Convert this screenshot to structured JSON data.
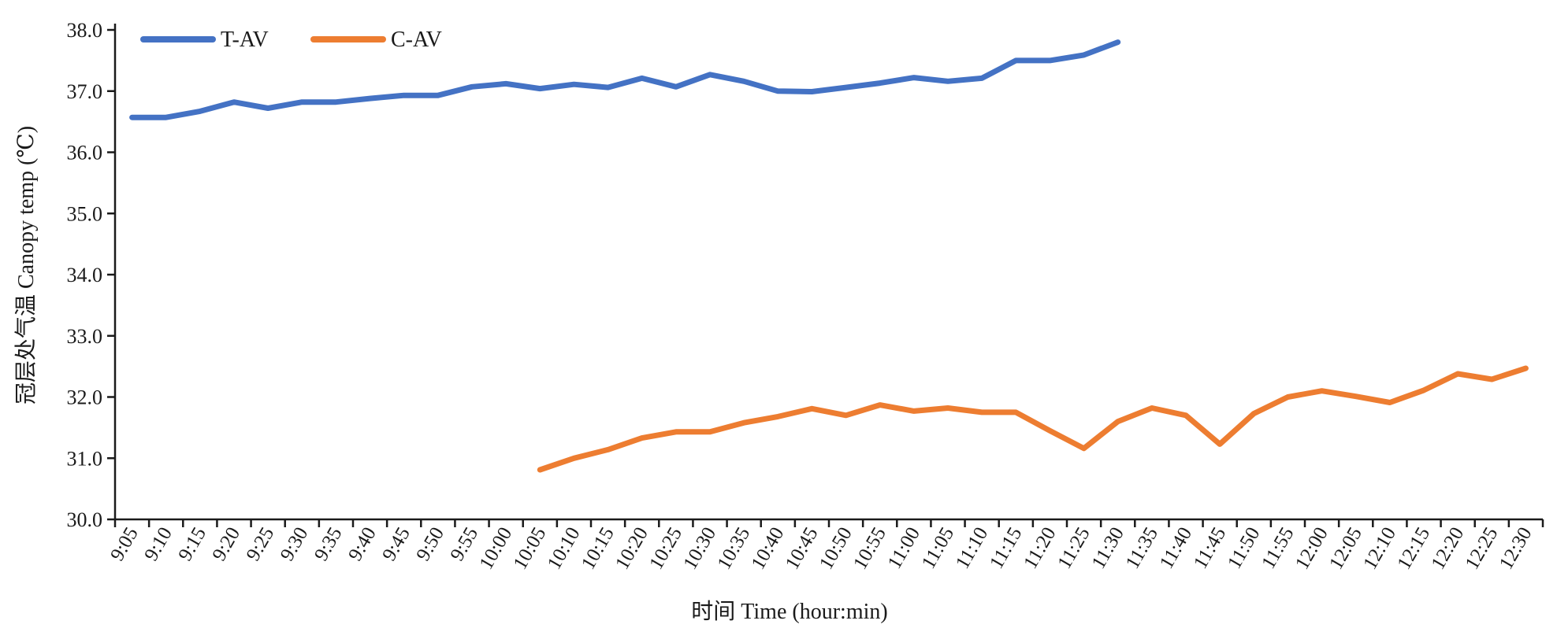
{
  "chart_data": {
    "type": "line",
    "xlabel": "时间 Time (hour:min)",
    "ylabel": "冠层处气温 Canopy temp (℃)",
    "ylim": [
      30.0,
      38.0
    ],
    "yticks": [
      "30.0",
      "31.0",
      "32.0",
      "33.0",
      "34.0",
      "35.0",
      "36.0",
      "37.0",
      "38.0"
    ],
    "grid": false,
    "legend": "top-left",
    "categories": [
      "9:05",
      "9:10",
      "9:15",
      "9:20",
      "9:25",
      "9:30",
      "9:35",
      "9:40",
      "9:45",
      "9:50",
      "9:55",
      "10:00",
      "10:05",
      "10:10",
      "10:15",
      "10:20",
      "10:25",
      "10:30",
      "10:35",
      "10:40",
      "10:45",
      "10:50",
      "10:55",
      "11:00",
      "11:05",
      "11:10",
      "11:15",
      "11:20",
      "11:25",
      "11:30",
      "11:35",
      "11:40",
      "11:45",
      "11:50",
      "11:55",
      "12:00",
      "12:05",
      "12:10",
      "12:15",
      "12:20",
      "12:25",
      "12:30"
    ],
    "series": [
      {
        "name": "T-AV",
        "color": "#4472C4",
        "values": [
          36.57,
          36.57,
          36.67,
          36.82,
          36.72,
          36.82,
          36.82,
          36.88,
          36.93,
          36.93,
          37.07,
          37.12,
          37.04,
          37.11,
          37.06,
          37.21,
          37.07,
          37.27,
          37.16,
          37.0,
          36.99,
          37.06,
          37.13,
          37.22,
          37.16,
          37.21,
          37.5,
          37.5,
          37.59,
          37.8,
          null,
          null,
          null,
          null,
          null,
          null,
          null,
          null,
          null,
          null,
          null,
          null
        ]
      },
      {
        "name": "C-AV",
        "color": "#ED7D31",
        "values": [
          null,
          null,
          null,
          null,
          null,
          null,
          null,
          null,
          null,
          null,
          null,
          null,
          30.81,
          31.0,
          31.14,
          31.33,
          31.43,
          31.43,
          31.58,
          31.68,
          31.81,
          31.7,
          31.87,
          31.77,
          31.82,
          31.75,
          31.75,
          31.45,
          31.16,
          31.6,
          31.82,
          31.7,
          31.23,
          31.73,
          32.0,
          32.1,
          32.01,
          31.91,
          32.11,
          32.38,
          32.29,
          32.47
        ]
      }
    ]
  }
}
